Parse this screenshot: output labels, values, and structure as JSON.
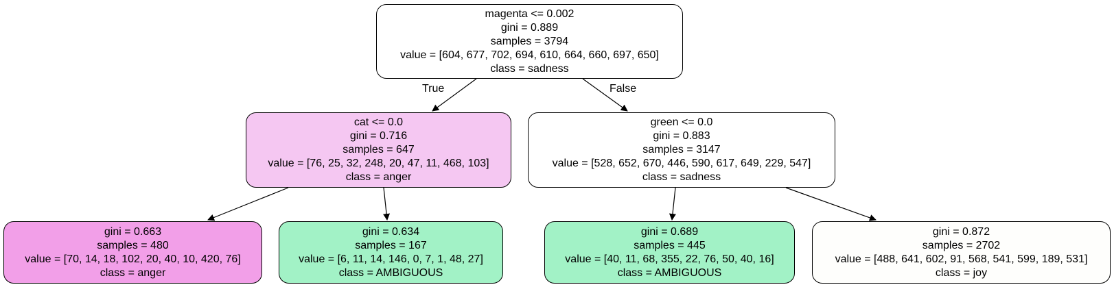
{
  "tree": {
    "root": {
      "split": "magenta <= 0.002",
      "gini": "gini = 0.889",
      "samples": "samples = 3794",
      "value": "value = [604, 677, 702, 694, 610, 664, 660, 697, 650]",
      "class": "class = sadness",
      "fill": "#ffffff"
    },
    "edge_labels": {
      "true": "True",
      "false": "False"
    },
    "left": {
      "split": "cat <= 0.0",
      "gini": "gini = 0.716",
      "samples": "samples = 647",
      "value": "value = [76, 25, 32, 248, 20, 47, 11, 468, 103]",
      "class": "class = anger",
      "fill": "#f5c7f2"
    },
    "right": {
      "split": "green <= 0.0",
      "gini": "gini = 0.883",
      "samples": "samples = 3147",
      "value": "value = [528, 652, 670, 446, 590, 617, 649, 229, 547]",
      "class": "class = sadness",
      "fill": "#ffffff"
    },
    "left_left": {
      "gini": "gini = 0.663",
      "samples": "samples = 480",
      "value": "value = [70, 14, 18, 102, 20, 40, 10, 420, 76]",
      "class": "class = anger",
      "fill": "#f29fe8"
    },
    "left_right": {
      "gini": "gini = 0.634",
      "samples": "samples = 167",
      "value": "value = [6, 11, 14, 146, 0, 7, 1, 48, 27]",
      "class": "class = AMBIGUOUS",
      "fill": "#a2f2c6"
    },
    "right_left": {
      "gini": "gini = 0.689",
      "samples": "samples = 445",
      "value": "value = [40, 11, 68, 355, 22, 76, 50, 40, 16]",
      "class": "class = AMBIGUOUS",
      "fill": "#a2f2c6"
    },
    "right_right": {
      "gini": "gini = 0.872",
      "samples": "samples = 2702",
      "value": "value = [488, 641, 602, 91, 568, 541, 599, 189, 531]",
      "class": "class = joy",
      "fill": "#fefefc"
    }
  }
}
